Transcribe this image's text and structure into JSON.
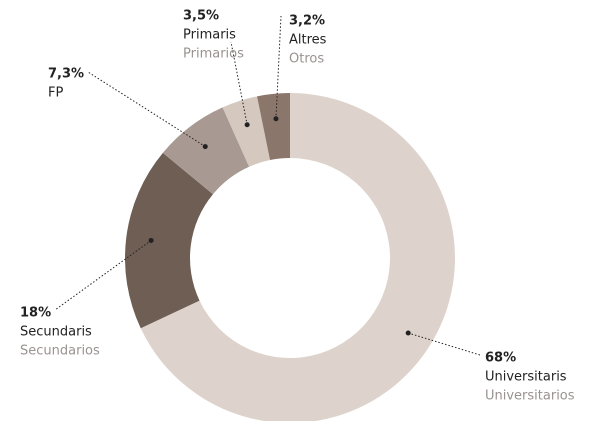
{
  "chart_data": {
    "type": "donut",
    "categories": [
      "Universitaris",
      "Secundaris",
      "FP",
      "Primaris",
      "Altres"
    ],
    "categories_es": [
      "Universitarios",
      "Secundarios",
      null,
      "Primarios",
      "Otros"
    ],
    "values": [
      68,
      18,
      7.3,
      3.5,
      3.2
    ],
    "value_labels": [
      "68%",
      "18%",
      "7,3%",
      "3,5%",
      "3,2%"
    ],
    "colors": [
      "#ddd3cc",
      "#6e5e53",
      "#a89a92",
      "#d4c8bf",
      "#8a766b"
    ]
  }
}
